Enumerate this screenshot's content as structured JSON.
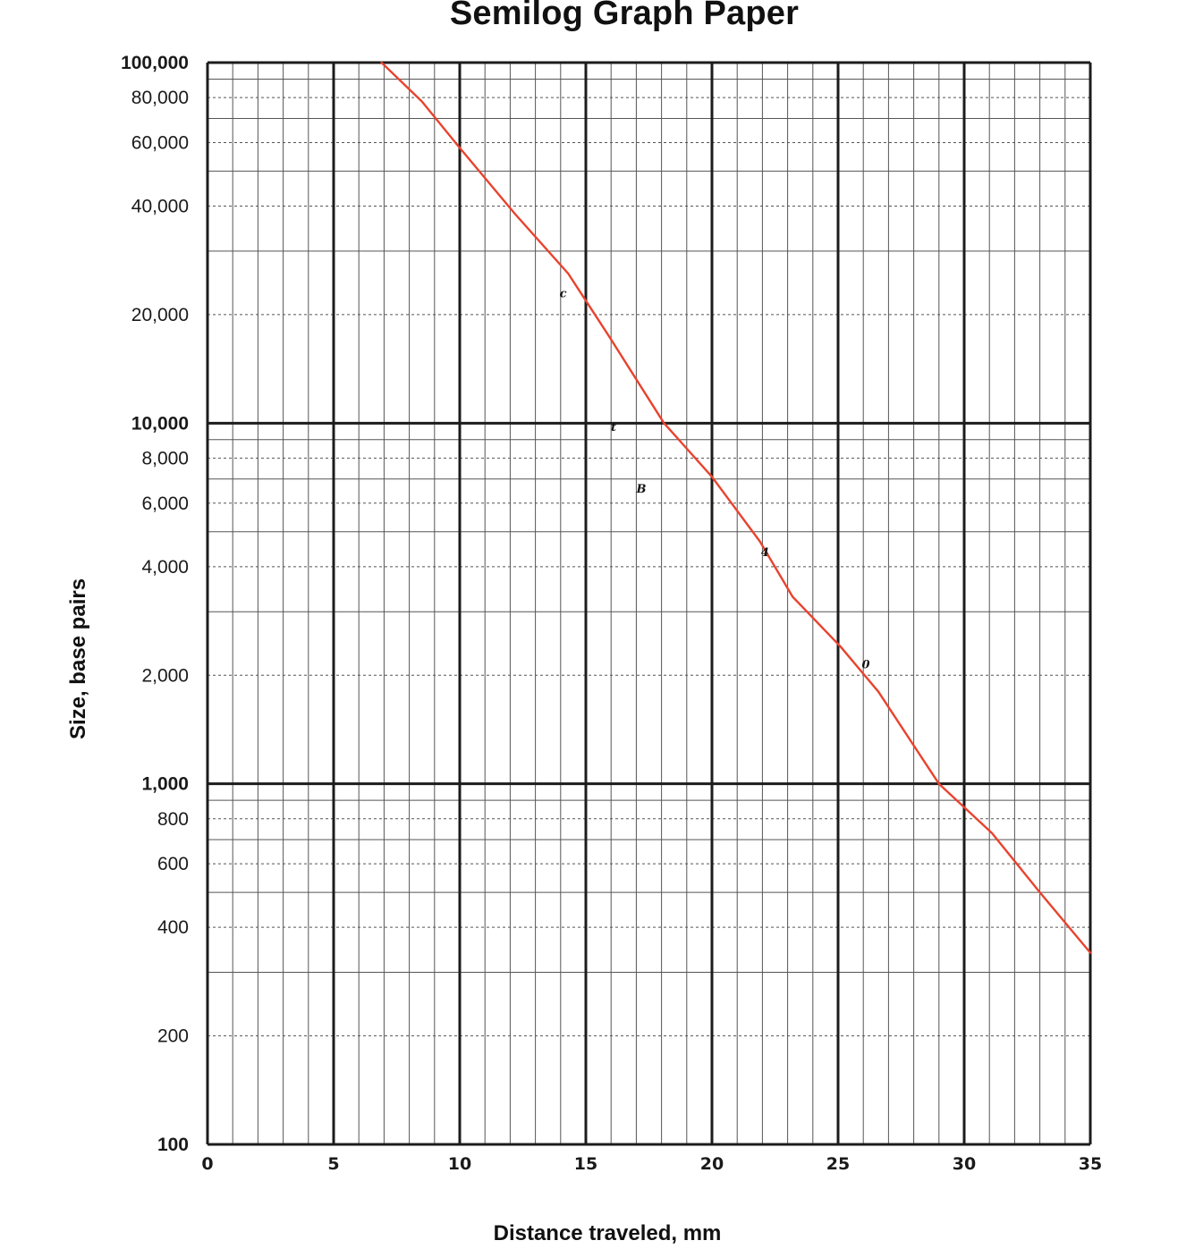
{
  "chart_data": {
    "type": "line",
    "title": "Semilog Graph Paper",
    "xlabel": "Distance traveled, mm",
    "ylabel": "Size, base pairs",
    "xlim": [
      0,
      35
    ],
    "ylim": [
      100,
      100000
    ],
    "yscale": "log",
    "grid": true,
    "x_ticks": [
      "0",
      "5",
      "10",
      "15",
      "20",
      "25",
      "30",
      "35"
    ],
    "y_ticks": [
      {
        "value": 100,
        "label": "100",
        "major": true
      },
      {
        "value": 200,
        "label": "200"
      },
      {
        "value": 400,
        "label": "400"
      },
      {
        "value": 600,
        "label": "600"
      },
      {
        "value": 800,
        "label": "800"
      },
      {
        "value": 1000,
        "label": "1,000",
        "major": true
      },
      {
        "value": 2000,
        "label": "2,000"
      },
      {
        "value": 4000,
        "label": "4,000"
      },
      {
        "value": 6000,
        "label": "6,000"
      },
      {
        "value": 8000,
        "label": "8,000"
      },
      {
        "value": 10000,
        "label": "10,000",
        "major": true
      },
      {
        "value": 20000,
        "label": "20,000"
      },
      {
        "value": 40000,
        "label": "40,000"
      },
      {
        "value": 60000,
        "label": "60,000"
      },
      {
        "value": 80000,
        "label": "80,000"
      },
      {
        "value": 100000,
        "label": "100,000",
        "major": true
      }
    ],
    "series": [
      {
        "color": "#e8432e",
        "points": [
          [
            6.9,
            100000
          ],
          [
            8.5,
            78000
          ],
          [
            10,
            58000
          ],
          [
            12.2,
            38000
          ],
          [
            14.3,
            26000
          ],
          [
            15.9,
            17500
          ],
          [
            18.1,
            10000
          ],
          [
            20,
            7100
          ],
          [
            21.9,
            4700
          ],
          [
            23.2,
            3300
          ],
          [
            25.1,
            2400
          ],
          [
            26.6,
            1800
          ],
          [
            29,
            1000
          ],
          [
            31.1,
            730
          ],
          [
            33,
            500
          ],
          [
            35,
            340
          ]
        ]
      }
    ],
    "annotations": [
      {
        "x": 14.1,
        "y": 23000,
        "label": "c"
      },
      {
        "x": 16.1,
        "y": 9800,
        "label": "t"
      },
      {
        "x": 17.2,
        "y": 6600,
        "label": "B"
      },
      {
        "x": 22.1,
        "y": 4400,
        "label": "4"
      },
      {
        "x": 26.1,
        "y": 2150,
        "label": "0"
      }
    ]
  }
}
